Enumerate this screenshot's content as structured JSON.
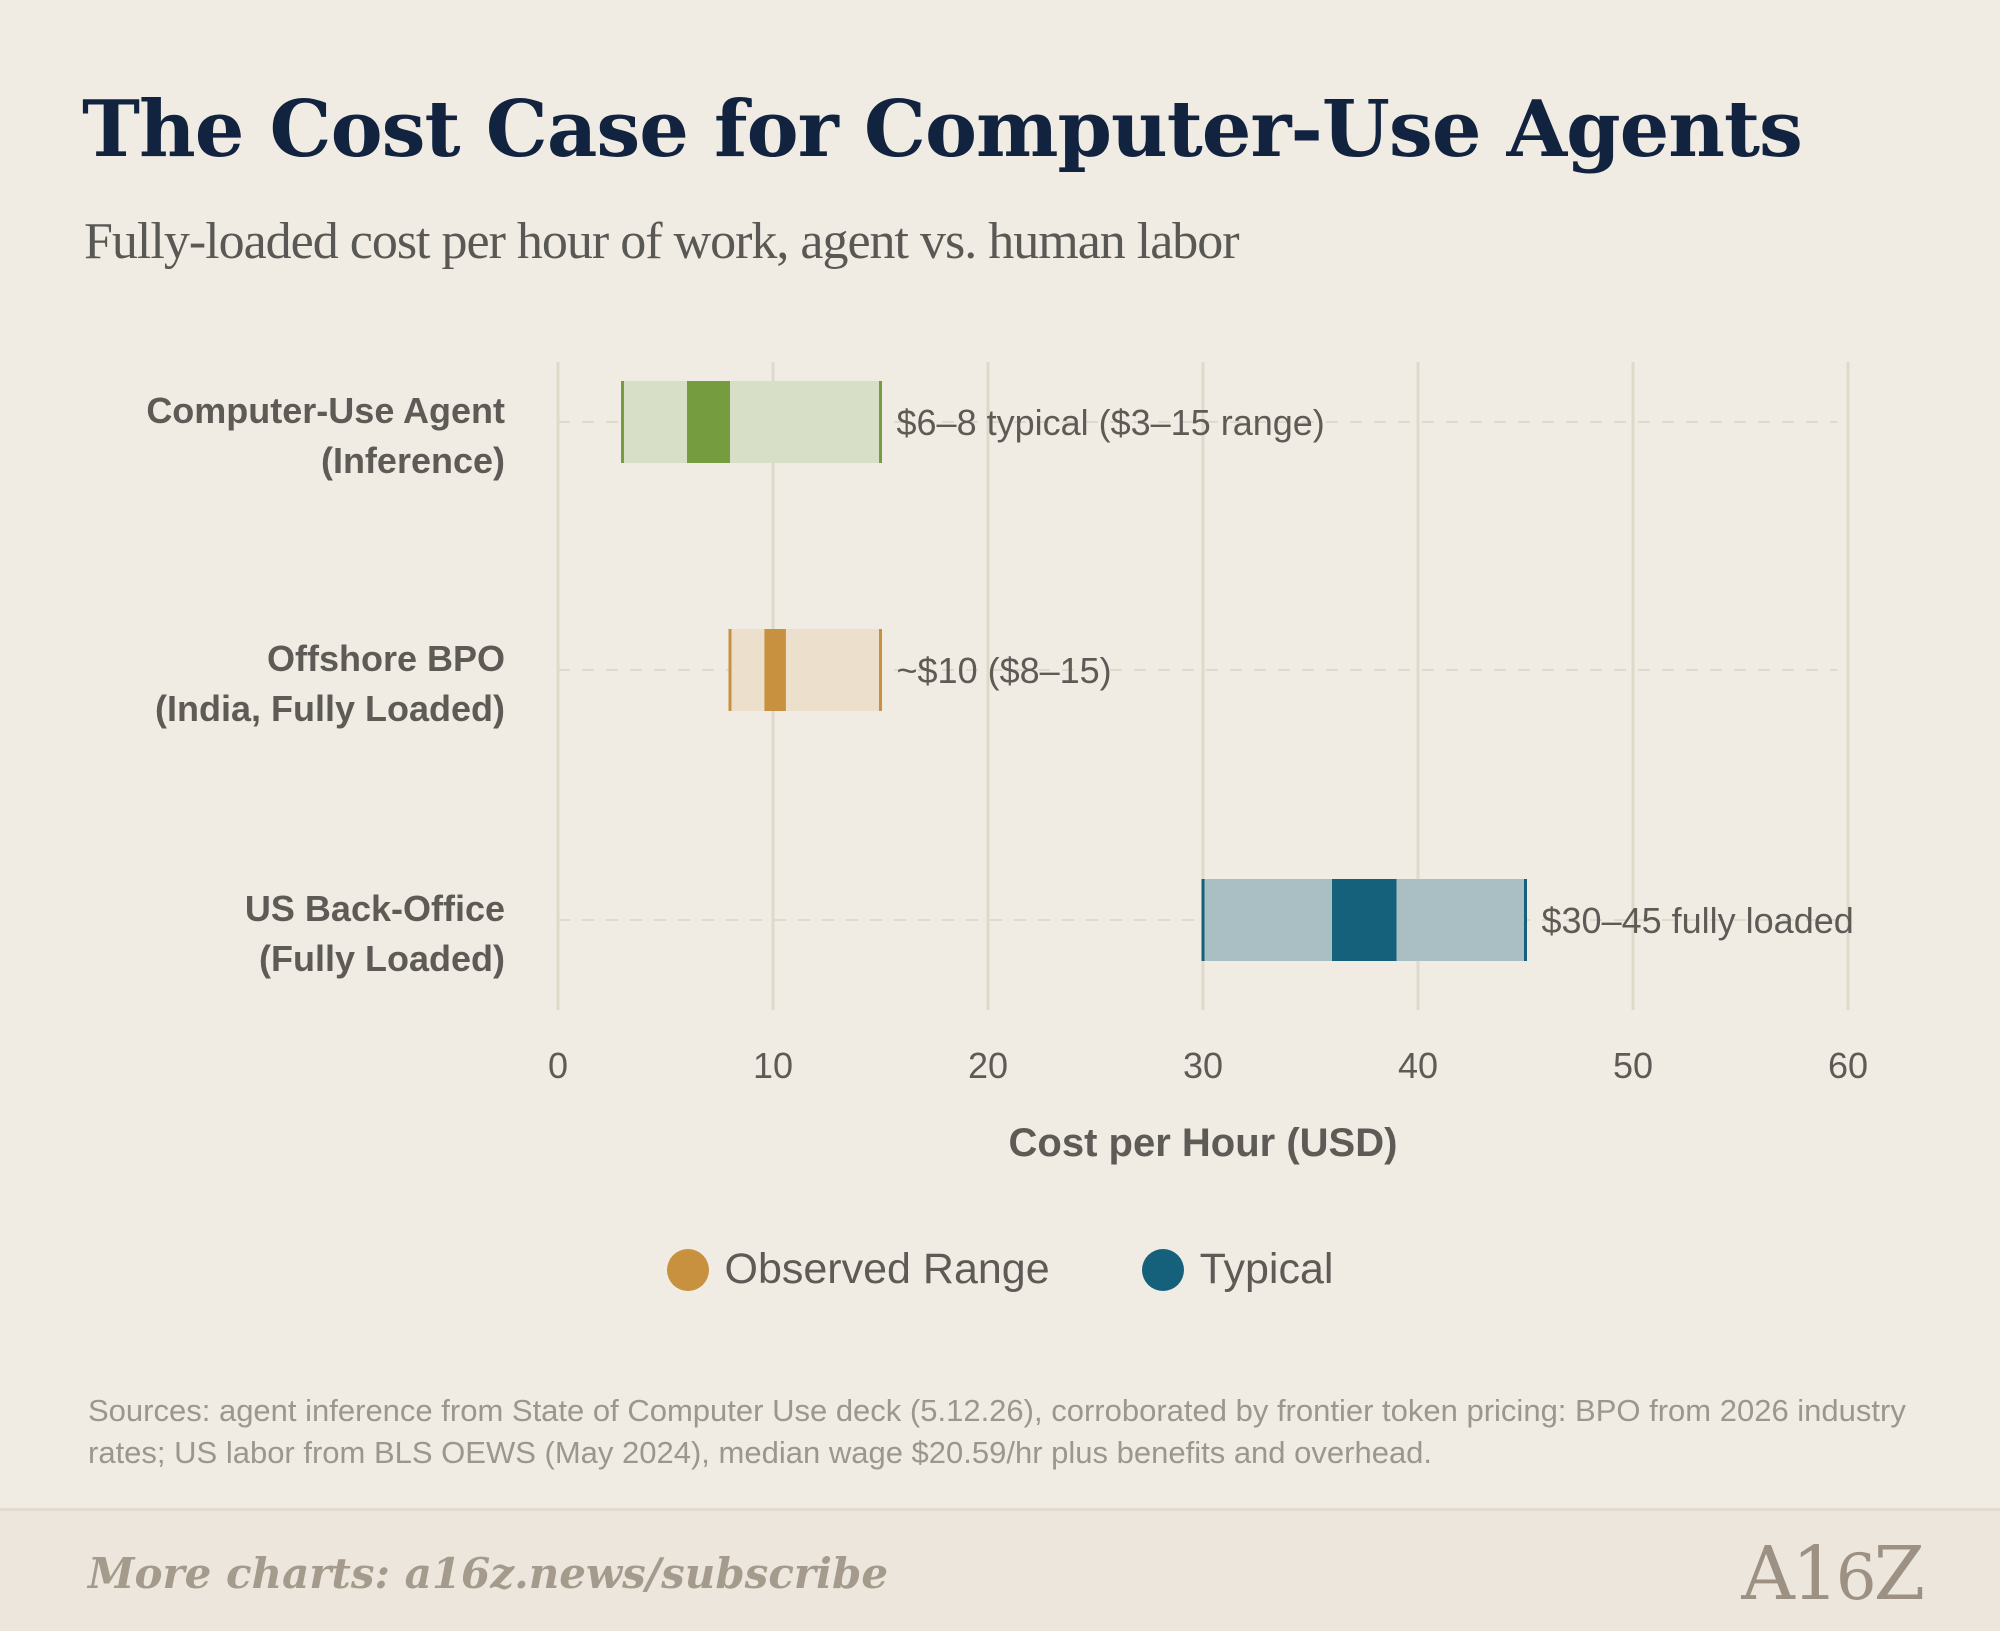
{
  "title": "The Cost Case for Computer-Use Agents",
  "subtitle": "Fully-loaded cost per hour of work, agent vs. human labor",
  "chart_data": {
    "type": "range-bar",
    "xlabel": "Cost per Hour (USD)",
    "xlim": [
      0,
      60
    ],
    "xticks": [
      0,
      10,
      20,
      30,
      40,
      50,
      60
    ],
    "grid": true,
    "rows": [
      {
        "label_lines": [
          "Computer-Use Agent",
          "(Inference)"
        ],
        "range": [
          3,
          15
        ],
        "typical": [
          6,
          8
        ],
        "note": "$6–8 typical ($3–15 range)",
        "range_color": "#d7dfc6",
        "typical_color": "#769c40"
      },
      {
        "label_lines": [
          "Offshore BPO",
          "(India, Fully Loaded)"
        ],
        "range": [
          8,
          15
        ],
        "typical": [
          9.6,
          10.6
        ],
        "note": "~$10 ($8–15)",
        "range_color": "#ecdfcb",
        "typical_color": "#c8913f"
      },
      {
        "label_lines": [
          "US Back-Office",
          "(Fully Loaded)"
        ],
        "range": [
          30,
          45
        ],
        "typical": [
          36,
          39
        ],
        "note": "$30–45 fully loaded",
        "range_color": "#a9bfc4",
        "typical_color": "#15617b"
      }
    ],
    "legend": {
      "placement": "bottom-center",
      "items": [
        {
          "label": "Observed Range",
          "color": "#c8913f"
        },
        {
          "label": "Typical",
          "color": "#15617b"
        }
      ]
    }
  },
  "sources_text": "Sources: agent inference from State of Computer Use deck (5.12.26), corroborated by frontier token pricing: BPO from 2026 industry rates; US labor from BLS OEWS (May 2024), median wage $20.59/hr plus benefits and overhead.",
  "footer_text": "More charts: a16z.news/subscribe",
  "logo_text": "A16Z"
}
